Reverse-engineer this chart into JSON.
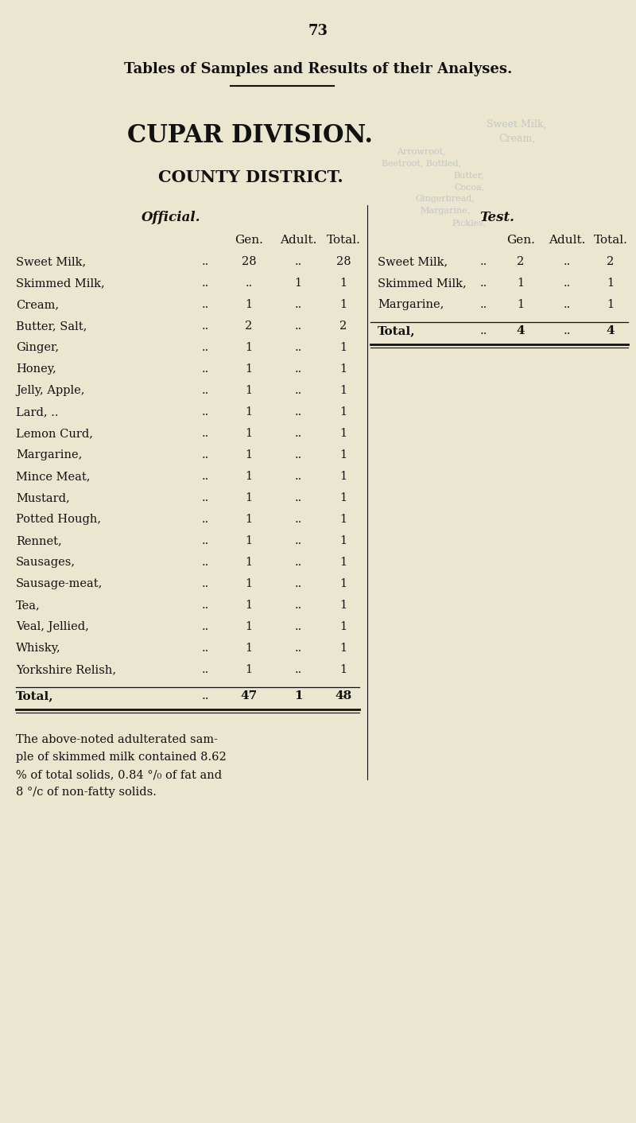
{
  "page_number": "73",
  "title": "Tables of Samples and Results of their Analyses.",
  "division": "CUPAR DIVISION.",
  "subtitle": "COUNTY DISTRICT.",
  "bg_color": "#eae6d0",
  "text_color": "#111111",
  "faded_color": "#9aaabb",
  "left_header": "Official.",
  "right_header": "Test.",
  "col_headers": [
    "Gen.",
    "Adult.",
    "Total."
  ],
  "left_rows": [
    [
      "Sweet Milk,",
      "28",
      "",
      "28"
    ],
    [
      "Skimmed Milk,",
      "",
      "1",
      "1"
    ],
    [
      "Cream,",
      "1",
      "",
      "1"
    ],
    [
      "Butter, Salt,",
      "2",
      "",
      "2"
    ],
    [
      "Ginger,",
      "1",
      "",
      "1"
    ],
    [
      "Honey,",
      "1",
      "",
      "1"
    ],
    [
      "Jelly, Apple,",
      "1",
      "",
      "1"
    ],
    [
      "Lard, ..",
      "1",
      "",
      "1"
    ],
    [
      "Lemon Curd,",
      "1",
      "",
      "1"
    ],
    [
      "Margarine,",
      "1",
      "",
      "1"
    ],
    [
      "Mince Meat,",
      "1",
      "",
      "1"
    ],
    [
      "Mustard,",
      "1",
      "",
      "1"
    ],
    [
      "Potted Hough,",
      "1",
      "",
      "1"
    ],
    [
      "Rennet,",
      "1",
      "",
      "1"
    ],
    [
      "Sausages,",
      "1",
      "",
      "1"
    ],
    [
      "Sausage-meat,",
      "1",
      "",
      "1"
    ],
    [
      "Tea,",
      "1",
      "",
      "1"
    ],
    [
      "Veal, Jellied,",
      "1",
      "",
      "1"
    ],
    [
      "Whisky,",
      "1",
      "",
      "1"
    ],
    [
      "Yorkshire Relish,",
      "1",
      "",
      "1"
    ]
  ],
  "left_total": [
    "Total,",
    "47",
    "1",
    "48"
  ],
  "right_rows": [
    [
      "Sweet Milk,",
      "2",
      "",
      "2"
    ],
    [
      "Skimmed Milk,",
      "1",
      "",
      "1"
    ],
    [
      "Margarine,",
      "1",
      "",
      "1"
    ]
  ],
  "right_total": [
    "Total,",
    "4",
    "..",
    "4"
  ],
  "footer_lines": [
    "The above-noted adulterated sam-",
    "ple of skimmed milk contained 8.62",
    "% of total solids, 0.84 °/₀ of fat and",
    "8 °/c of non-fatty solids."
  ]
}
